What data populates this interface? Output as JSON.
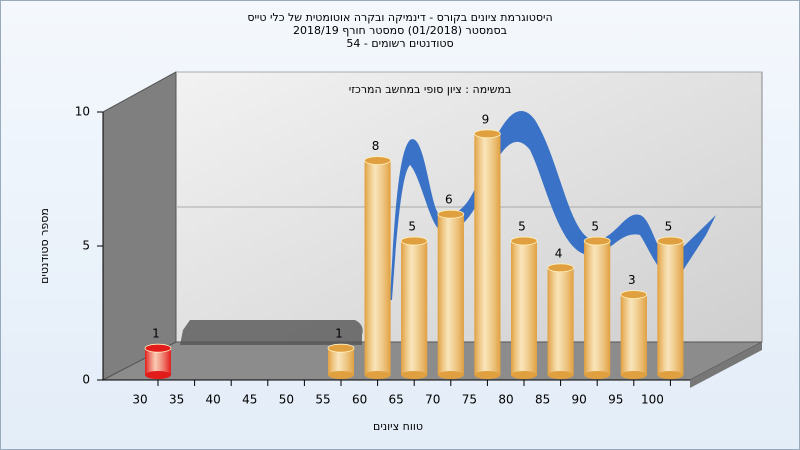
{
  "chart_data": {
    "type": "bar",
    "title": "היסטוגרמת ציונים בקורס - דינמיקה ובקרה אוטומטית של כלי טייס",
    "subtitle": "בסמסטר  (01/2018)  סמסטר חורף  2018/19",
    "subtitle2": "54 - סטודנטים רשומים",
    "annotation": "במשימה : ציון סופי במחשב המרכזי",
    "x_label": "טווח ציונים",
    "y_label": "מספר סטודנטים",
    "categories": [
      "30",
      "35",
      "40",
      "45",
      "50",
      "55",
      "60",
      "65",
      "70",
      "75",
      "80",
      "85",
      "90",
      "95",
      "100"
    ],
    "values": [
      1,
      0,
      0,
      0,
      0,
      1,
      8,
      5,
      6,
      9,
      5,
      4,
      5,
      3,
      5
    ],
    "colors": [
      "#e21b1b",
      "#e0a040",
      "#e0a040",
      "#e0a040",
      "#e0a040",
      "#e0a040",
      "#e0a040",
      "#e0a040",
      "#e0a040",
      "#e0a040",
      "#e0a040",
      "#e0a040",
      "#e0a040",
      "#e0a040",
      "#e0a040"
    ],
    "ylim": [
      0,
      10
    ],
    "yticks": [
      0,
      5,
      10
    ],
    "grid": true
  }
}
